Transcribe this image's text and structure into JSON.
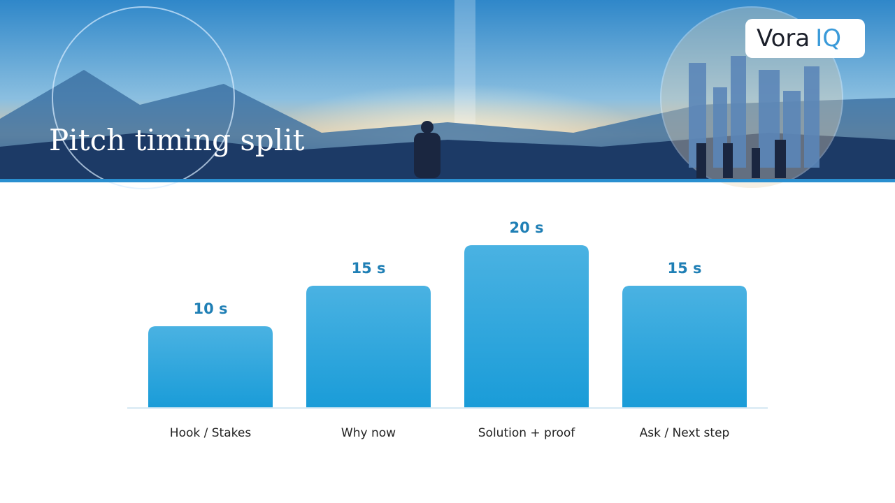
{
  "header": {
    "title": "Pitch timing split",
    "logo": [
      "Vora",
      "IQ"
    ]
  },
  "chart_data": {
    "type": "bar",
    "categories": [
      "Hook / Stakes",
      "Why now",
      "Solution + proof",
      "Ask / Next step"
    ],
    "values": [
      10,
      15,
      20,
      15
    ],
    "value_labels": [
      "10 s",
      "15 s",
      "20 s",
      "15 s"
    ],
    "color": "#2aa6dd"
  }
}
